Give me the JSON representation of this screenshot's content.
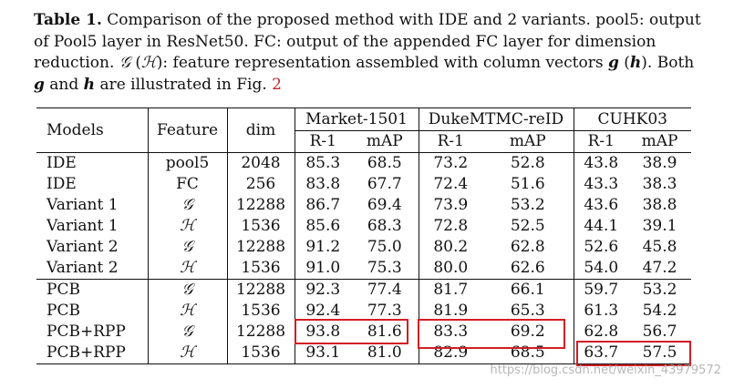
{
  "caption": {
    "label": "Table 1.",
    "text": " Comparison of the proposed method with IDE and 2 variants. pool5: output of Pool5 layer in ResNet50. FC: output of the appended FC layer for dimension reduction. ",
    "g_symbol": "𝒢",
    "h_symbol": "ℋ",
    "text2": ": feature representation assembled with column vectors ",
    "g_vec": "g",
    "h_vec": "h",
    "text3": ". Both ",
    "text4": " and ",
    "text5": " are illustrated in Fig. ",
    "fig_ref": "2"
  },
  "table": {
    "headers": {
      "models": "Models",
      "feature": "Feature",
      "dim": "dim",
      "datasets": [
        "Market-1501",
        "DukeMTMC-reID",
        "CUHK03"
      ],
      "metric_r1": "R-1",
      "metric_map": "mAP"
    },
    "rows": [
      {
        "model": "IDE",
        "feature": "pool5",
        "dim": "2048",
        "m_r1": "85.3",
        "m_map": "68.5",
        "d_r1": "73.2",
        "d_map": "52.8",
        "c_r1": "43.8",
        "c_map": "38.9"
      },
      {
        "model": "IDE",
        "feature": "FC",
        "dim": "256",
        "m_r1": "83.8",
        "m_map": "67.7",
        "d_r1": "72.4",
        "d_map": "51.6",
        "c_r1": "43.3",
        "c_map": "38.3"
      },
      {
        "model": "Variant 1",
        "feature": "𝒢",
        "dim": "12288",
        "m_r1": "86.7",
        "m_map": "69.4",
        "d_r1": "73.9",
        "d_map": "53.2",
        "c_r1": "43.6",
        "c_map": "38.8"
      },
      {
        "model": "Variant 1",
        "feature": "ℋ",
        "dim": "1536",
        "m_r1": "85.6",
        "m_map": "68.3",
        "d_r1": "72.8",
        "d_map": "52.5",
        "c_r1": "44.1",
        "c_map": "39.1"
      },
      {
        "model": "Variant 2",
        "feature": "𝒢",
        "dim": "12288",
        "m_r1": "91.2",
        "m_map": "75.0",
        "d_r1": "80.2",
        "d_map": "62.8",
        "c_r1": "52.6",
        "c_map": "45.8"
      },
      {
        "model": "Variant 2",
        "feature": "ℋ",
        "dim": "1536",
        "m_r1": "91.0",
        "m_map": "75.3",
        "d_r1": "80.0",
        "d_map": "62.6",
        "c_r1": "54.0",
        "c_map": "47.2"
      },
      {
        "model": "PCB",
        "feature": "𝒢",
        "dim": "12288",
        "m_r1": "92.3",
        "m_map": "77.4",
        "d_r1": "81.7",
        "d_map": "66.1",
        "c_r1": "59.7",
        "c_map": "53.2"
      },
      {
        "model": "PCB",
        "feature": "ℋ",
        "dim": "1536",
        "m_r1": "92.4",
        "m_map": "77.3",
        "d_r1": "81.9",
        "d_map": "65.3",
        "c_r1": "61.3",
        "c_map": "54.2"
      },
      {
        "model": "PCB+RPP",
        "feature": "𝒢",
        "dim": "12288",
        "m_r1": "93.8",
        "m_map": "81.6",
        "d_r1": "83.3",
        "d_map": "69.2",
        "c_r1": "62.8",
        "c_map": "56.7"
      },
      {
        "model": "PCB+RPP",
        "feature": "ℋ",
        "dim": "1536",
        "m_r1": "93.1",
        "m_map": "81.0",
        "d_r1": "82.9",
        "d_map": "68.5",
        "c_r1": "63.7",
        "c_map": "57.5"
      }
    ]
  },
  "highlight_color": "#d21e24",
  "watermark": "https://blog.csdn.net/weixin_43979572"
}
